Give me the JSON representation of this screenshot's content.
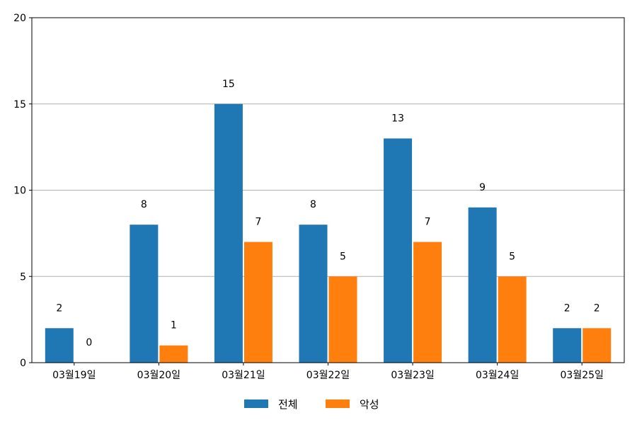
{
  "chart_data": {
    "type": "bar",
    "categories": [
      "03월19일",
      "03월20일",
      "03월21일",
      "03월22일",
      "03월23일",
      "03월24일",
      "03월25일"
    ],
    "series": [
      {
        "name": "전체",
        "values": [
          2,
          8,
          15,
          8,
          13,
          9,
          2
        ],
        "color": "#1f77b4"
      },
      {
        "name": "악성",
        "values": [
          0,
          1,
          7,
          5,
          7,
          5,
          2
        ],
        "color": "#ff7f0e"
      }
    ],
    "ylim": [
      0,
      20
    ],
    "yticks": [
      0,
      5,
      10,
      15,
      20
    ],
    "grid": "y",
    "legend": "bottom-center",
    "data_labels": true
  }
}
